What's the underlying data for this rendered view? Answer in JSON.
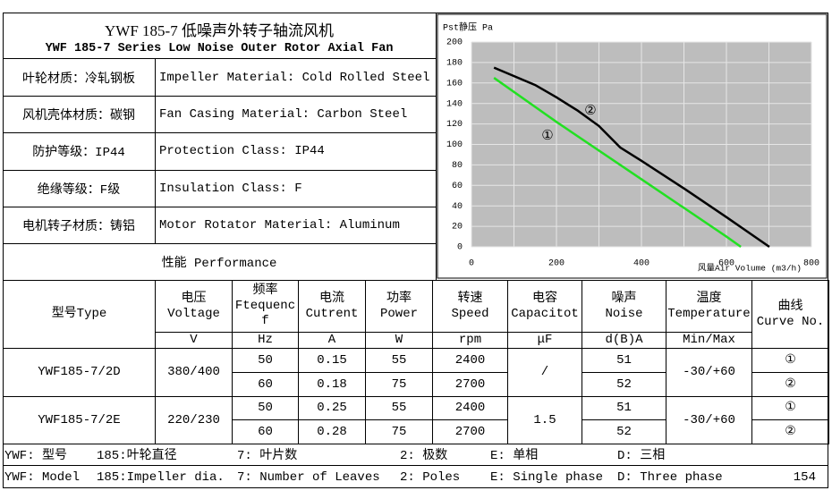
{
  "header": {
    "title": "YWF 185-7 低噪声外转子轴流风机",
    "subtitle": "YWF 185-7 Series Low Noise Outer Rotor Axial Fan"
  },
  "specs": [
    {
      "zh": "叶轮材质：冷轧钢板",
      "en": "Impeller Material: Cold Rolled Steel"
    },
    {
      "zh": "风机壳体材质：碳钢",
      "en": "Fan Casing Material: Carbon Steel"
    },
    {
      "zh": "防护等级：IP44",
      "en": "Protection Class: IP44"
    },
    {
      "zh": "绝缘等级：F级",
      "en": "Insulation Class: F"
    },
    {
      "zh": "电机转子材质：铸铝",
      "en": "Motor Rotator Material: Aluminum"
    }
  ],
  "performance": "性能  Performance",
  "chart_data": {
    "type": "line",
    "ylabel": "Pst静压 Pa",
    "xlabel": "风量Air Volume (m3/h)",
    "xlim": [
      0,
      800
    ],
    "xticks": [
      0,
      200,
      400,
      600,
      800
    ],
    "xminorticks": [
      100,
      300,
      500,
      700
    ],
    "ylim": [
      0,
      200
    ],
    "yticks": [
      0,
      20,
      40,
      60,
      80,
      100,
      120,
      140,
      160,
      180,
      200
    ],
    "grid": true,
    "series": [
      {
        "name": "①",
        "color": "#22e022",
        "x": [
          53,
          200,
          400,
          600,
          634
        ],
        "values": [
          165,
          122,
          66,
          10,
          0
        ]
      },
      {
        "name": "②",
        "color": "#000000",
        "x": [
          53,
          150,
          200,
          250,
          300,
          350,
          400,
          500,
          600,
          701
        ],
        "values": [
          175,
          158,
          146,
          133,
          118,
          97,
          84,
          57,
          29,
          0
        ]
      }
    ]
  },
  "table": {
    "columns": [
      {
        "name": "型号Type"
      },
      {
        "name": "电压\nVoltage",
        "unit": "V"
      },
      {
        "name": "频率\nFtequenc\nf",
        "unit": "Hz"
      },
      {
        "name": "电流\nCutrent",
        "unit": "A"
      },
      {
        "name": "功率\nPower",
        "unit": "W"
      },
      {
        "name": "转速\nSpeed",
        "unit": "rpm"
      },
      {
        "name": "电容\nCapacitot",
        "unit": "μF"
      },
      {
        "name": "噪声\nNoise",
        "unit": "d(B)A"
      },
      {
        "name": "温度\nTemperature",
        "unit": "Min/Max"
      },
      {
        "name": "曲线\nCurve No."
      }
    ],
    "models": [
      {
        "type": "YWF185-7/2D",
        "voltage": "380/400",
        "capacitor": "/",
        "temperature": "-30/+60",
        "rows": [
          {
            "frequency": "50",
            "current": "0.15",
            "power": "55",
            "speed": "2400",
            "noise": "51",
            "curve": "①"
          },
          {
            "frequency": "60",
            "current": "0.18",
            "power": "75",
            "speed": "2700",
            "noise": "52",
            "curve": "②"
          }
        ]
      },
      {
        "type": "YWF185-7/2E",
        "voltage": "220/230",
        "capacitor": "1.5",
        "temperature": "-30/+60",
        "rows": [
          {
            "frequency": "50",
            "current": "0.25",
            "power": "55",
            "speed": "2400",
            "noise": "51",
            "curve": "①"
          },
          {
            "frequency": "60",
            "current": "0.28",
            "power": "75",
            "speed": "2700",
            "noise": "52",
            "curve": "②"
          }
        ]
      }
    ]
  },
  "footer": {
    "zh": [
      "YWF: 型号",
      "185:叶轮直径",
      "7: 叶片数",
      "2: 极数",
      "E: 单相",
      "D: 三相"
    ],
    "en": [
      "YWF: Model",
      "185:Impeller dia.",
      "7: Number of Leaves",
      "2: Poles",
      "E: Single phase",
      "D: Three phase"
    ],
    "page": "154"
  }
}
